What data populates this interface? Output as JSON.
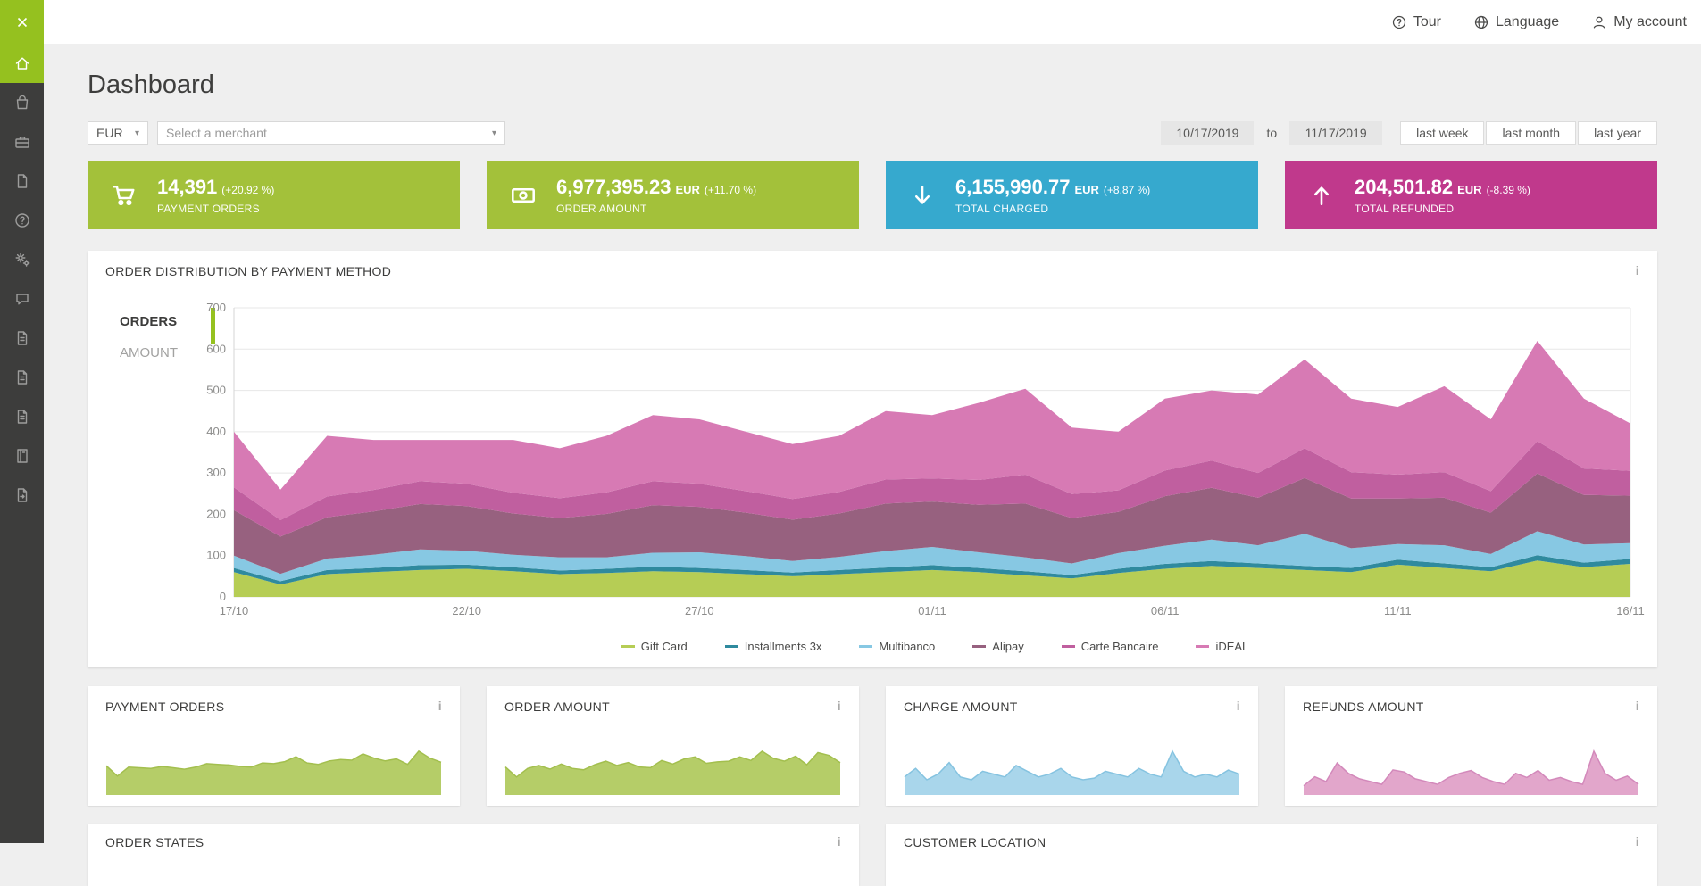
{
  "topbar": {
    "items": [
      {
        "label": "Tour",
        "icon": "help-circle-icon"
      },
      {
        "label": "Language",
        "icon": "globe-icon"
      },
      {
        "label": "My account",
        "icon": "user-icon"
      }
    ]
  },
  "sidebar": {
    "items": [
      {
        "icon": "home-icon",
        "active": true
      },
      {
        "icon": "shopping-bag-icon",
        "active": false
      },
      {
        "icon": "briefcase-icon",
        "active": false
      },
      {
        "icon": "document-icon",
        "active": false
      },
      {
        "icon": "help-icon",
        "active": false
      },
      {
        "icon": "settings-icon",
        "active": false
      },
      {
        "icon": "chat-icon",
        "active": false
      },
      {
        "icon": "report-icon",
        "active": false
      },
      {
        "icon": "report-2-icon",
        "active": false
      },
      {
        "icon": "report-3-icon",
        "active": false
      },
      {
        "icon": "ledger-icon",
        "active": false
      },
      {
        "icon": "export-icon",
        "active": false
      }
    ]
  },
  "page": {
    "title": "Dashboard"
  },
  "filters": {
    "currency": "EUR",
    "merchant_placeholder": "Select a merchant",
    "date_from": "10/17/2019",
    "date_to_label": "to",
    "date_to": "11/17/2019",
    "quick_ranges": [
      "last week",
      "last month",
      "last year"
    ]
  },
  "kpis": [
    {
      "icon": "cart-icon",
      "value": "14,391",
      "currency": "",
      "delta": "(+20.92 %)",
      "label": "PAYMENT ORDERS",
      "color": "#a3c13a"
    },
    {
      "icon": "banknote-icon",
      "value": "6,977,395.23",
      "currency": "EUR",
      "delta": "(+11.70 %)",
      "label": "ORDER AMOUNT",
      "color": "#a3c13a"
    },
    {
      "icon": "arrow-down-icon",
      "value": "6,155,990.77",
      "currency": "EUR",
      "delta": "(+8.87 %)",
      "label": "TOTAL CHARGED",
      "color": "#36a9ce"
    },
    {
      "icon": "arrow-up-icon",
      "value": "204,501.82",
      "currency": "EUR",
      "delta": "(-8.39 %)",
      "label": "TOTAL REFUNDED",
      "color": "#c0398c"
    }
  ],
  "main_chart": {
    "title": "ORDER DISTRIBUTION BY PAYMENT METHOD",
    "tabs": [
      "ORDERS",
      "AMOUNT"
    ],
    "info_icon": "i",
    "chart_data": {
      "type": "area",
      "stacked": true,
      "title": "ORDER DISTRIBUTION BY PAYMENT METHOD",
      "ylim": [
        0,
        700
      ],
      "ystep": 100,
      "grid": true,
      "legend_position": "bottom",
      "x": [
        "17/10",
        "18/10",
        "19/10",
        "20/10",
        "21/10",
        "22/10",
        "23/10",
        "24/10",
        "25/10",
        "26/10",
        "27/10",
        "28/10",
        "29/10",
        "30/10",
        "31/10",
        "01/11",
        "02/11",
        "03/11",
        "04/11",
        "05/11",
        "06/11",
        "07/11",
        "08/11",
        "09/11",
        "10/11",
        "11/11",
        "12/11",
        "13/11",
        "14/11",
        "15/11",
        "16/11"
      ],
      "xticks": [
        "17/10",
        "22/10",
        "27/10",
        "01/11",
        "06/11",
        "11/11",
        "16/11"
      ],
      "series": [
        {
          "name": "Gift Card",
          "color": "#b6cd55",
          "values": [
            60,
            30,
            55,
            60,
            65,
            68,
            62,
            55,
            58,
            62,
            60,
            55,
            50,
            55,
            60,
            65,
            60,
            52,
            45,
            58,
            68,
            75,
            70,
            65,
            60,
            78,
            70,
            62,
            88,
            72,
            80
          ]
        },
        {
          "name": "Installments 3x",
          "color": "#2f8a9e",
          "values": [
            10,
            8,
            10,
            10,
            12,
            10,
            10,
            9,
            10,
            11,
            10,
            10,
            9,
            10,
            11,
            12,
            10,
            10,
            8,
            10,
            12,
            12,
            11,
            10,
            10,
            12,
            11,
            10,
            13,
            11,
            12
          ]
        },
        {
          "name": "Multibanco",
          "color": "#87c8e3",
          "values": [
            30,
            18,
            28,
            32,
            38,
            34,
            30,
            32,
            28,
            34,
            38,
            34,
            28,
            32,
            40,
            44,
            38,
            34,
            28,
            38,
            44,
            52,
            44,
            78,
            48,
            38,
            44,
            32,
            58,
            44,
            38
          ]
        },
        {
          "name": "Alipay",
          "color": "#97617f",
          "values": [
            110,
            90,
            100,
            105,
            110,
            108,
            100,
            95,
            105,
            115,
            110,
            105,
            100,
            105,
            115,
            110,
            115,
            130,
            110,
            100,
            120,
            125,
            115,
            135,
            120,
            110,
            115,
            100,
            140,
            120,
            115
          ]
        },
        {
          "name": "Carte Bancaire",
          "color": "#c05f9f",
          "values": [
            55,
            40,
            50,
            52,
            55,
            54,
            50,
            48,
            52,
            58,
            56,
            52,
            50,
            52,
            58,
            56,
            60,
            70,
            58,
            52,
            62,
            66,
            60,
            72,
            64,
            58,
            62,
            52,
            78,
            64,
            60
          ]
        },
        {
          "name": "iDEAL",
          "color": "#d77ab4",
          "values": [
            135,
            74,
            147,
            121,
            100,
            106,
            128,
            121,
            137,
            160,
            156,
            144,
            133,
            136,
            166,
            153,
            187,
            208,
            161,
            142,
            174,
            170,
            190,
            215,
            178,
            164,
            208,
            174,
            243,
            169,
            115
          ]
        }
      ]
    }
  },
  "sparkline_cards": [
    {
      "title": "PAYMENT ORDERS",
      "info_icon": "i",
      "fill": "#b5cd68",
      "stroke": "#a3bf4e",
      "chart_data": {
        "type": "area",
        "values": [
          41,
          26,
          39,
          38,
          37,
          40,
          38,
          36,
          39,
          44,
          43,
          42,
          40,
          39,
          45,
          44,
          47,
          54,
          45,
          43,
          48,
          50,
          49,
          58,
          52,
          48,
          51,
          43,
          62,
          52,
          46
        ]
      }
    },
    {
      "title": "ORDER AMOUNT",
      "info_icon": "i",
      "fill": "#b5cd68",
      "stroke": "#a3bf4e",
      "chart_data": {
        "type": "area",
        "values": [
          38,
          24,
          36,
          40,
          35,
          42,
          36,
          34,
          41,
          46,
          40,
          44,
          38,
          37,
          47,
          42,
          49,
          52,
          43,
          45,
          46,
          52,
          47,
          60,
          50,
          46,
          53,
          41,
          58,
          54,
          44
        ]
      }
    },
    {
      "title": "CHARGE AMOUNT",
      "info_icon": "i",
      "fill": "#a9d6eb",
      "stroke": "#85c3e0",
      "chart_data": {
        "type": "area",
        "values": [
          30,
          45,
          25,
          35,
          55,
          30,
          25,
          40,
          35,
          30,
          50,
          40,
          30,
          35,
          45,
          30,
          25,
          28,
          40,
          35,
          30,
          45,
          35,
          30,
          75,
          40,
          30,
          35,
          30,
          42,
          35
        ]
      }
    },
    {
      "title": "REFUNDS AMOUNT",
      "info_icon": "i",
      "fill": "#e2a6cb",
      "stroke": "#d389bb",
      "chart_data": {
        "type": "area",
        "values": [
          12,
          25,
          18,
          45,
          30,
          22,
          18,
          14,
          35,
          32,
          22,
          18,
          14,
          24,
          30,
          34,
          24,
          18,
          14,
          30,
          24,
          34,
          20,
          24,
          18,
          14,
          62,
          30,
          20,
          26,
          14
        ]
      }
    }
  ],
  "partial_cards": [
    {
      "title": "ORDER STATES",
      "info_icon": "i"
    },
    {
      "title": "CUSTOMER LOCATION",
      "info_icon": "i"
    }
  ]
}
